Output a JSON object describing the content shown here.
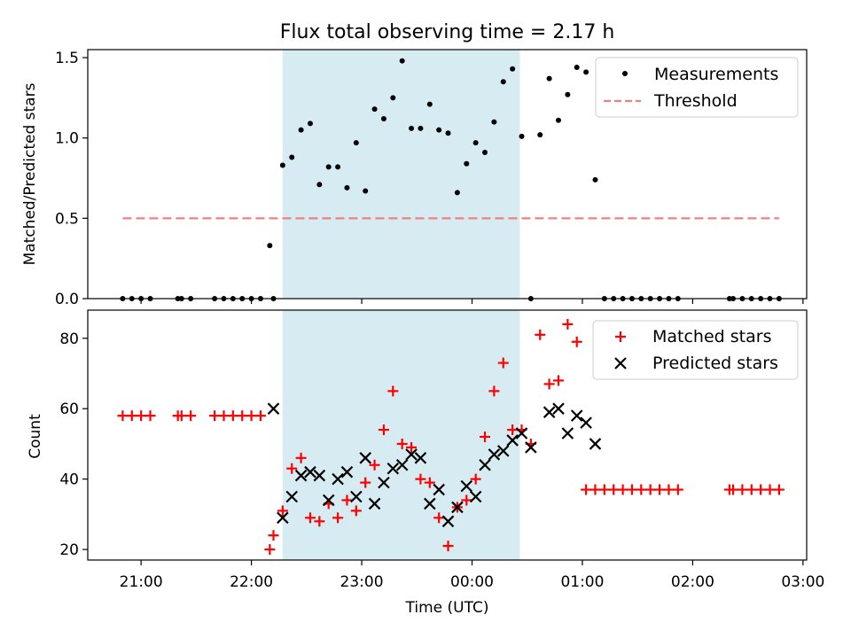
{
  "chart_data": [
    {
      "type": "scatter",
      "title": "Flux total observing time = 2.17 h",
      "ylabel": "Matched/Predicted stars",
      "xlabel": "",
      "ylim": [
        0,
        1.55
      ],
      "yticks": [
        "0.0",
        "0.5",
        "1.0",
        "1.5"
      ],
      "yticks_values": [
        0,
        0.5,
        1.0,
        1.5
      ],
      "legend": {
        "placement": "top-right",
        "entries": [
          "Measurements",
          "Threshold"
        ]
      },
      "shaded_interval": {
        "start": "22:17",
        "end": "00:26",
        "color": "#add8e6"
      },
      "threshold": {
        "name": "Threshold",
        "value": 0.5,
        "x_start": "20:50",
        "x_end": "02:47",
        "color": "#f08080",
        "style": "dashed"
      },
      "series": [
        {
          "name": "Measurements",
          "color": "#000000",
          "marker": "dot",
          "x": [
            "20:50",
            "20:55",
            "21:00",
            "21:05",
            "21:20",
            "21:22",
            "21:27",
            "21:40",
            "21:45",
            "21:50",
            "21:55",
            "22:00",
            "22:05",
            "22:10",
            "22:12",
            "22:17",
            "22:22",
            "22:27",
            "22:32",
            "22:37",
            "22:42",
            "22:47",
            "22:52",
            "22:57",
            "23:02",
            "23:07",
            "23:12",
            "23:17",
            "23:22",
            "23:27",
            "23:32",
            "23:37",
            "23:42",
            "23:47",
            "23:52",
            "23:57",
            "00:02",
            "00:07",
            "00:12",
            "00:17",
            "00:22",
            "00:27",
            "00:32",
            "00:37",
            "00:42",
            "00:47",
            "00:52",
            "00:57",
            "01:02",
            "01:07",
            "01:12",
            "01:17",
            "01:22",
            "01:27",
            "01:32",
            "01:37",
            "01:42",
            "01:47",
            "01:52",
            "02:20",
            "02:22",
            "02:27",
            "02:32",
            "02:37",
            "02:42",
            "02:47"
          ],
          "y": [
            0,
            0,
            0,
            0,
            0,
            0,
            0,
            0,
            0,
            0,
            0,
            0,
            0,
            0.33,
            0,
            0.83,
            0.88,
            1.05,
            1.09,
            0.71,
            0.82,
            0.82,
            0.69,
            0.97,
            0.67,
            1.18,
            1.12,
            1.25,
            1.48,
            1.06,
            1.06,
            1.21,
            1.05,
            1.03,
            0.66,
            0.84,
            0.97,
            0.91,
            1.1,
            1.35,
            1.43,
            1.01,
            0,
            1.02,
            1.37,
            1.11,
            1.27,
            1.44,
            1.41,
            0.74,
            0,
            0,
            0,
            0,
            0,
            0,
            0,
            0,
            0,
            0,
            0,
            0,
            0,
            0,
            0,
            0
          ]
        }
      ]
    },
    {
      "type": "scatter",
      "title": "",
      "ylabel": "Count",
      "xlabel": "Time (UTC)",
      "ylim": [
        17,
        88
      ],
      "yticks": [
        "20",
        "40",
        "60",
        "80"
      ],
      "yticks_values": [
        20,
        40,
        60,
        80
      ],
      "xticks": [
        "21:00",
        "22:00",
        "23:00",
        "00:00",
        "01:00",
        "02:00",
        "03:00"
      ],
      "legend": {
        "placement": "top-right",
        "entries": [
          "Matched stars",
          "Predicted stars"
        ]
      },
      "shaded_interval": {
        "start": "22:17",
        "end": "00:26",
        "color": "#add8e6"
      },
      "series": [
        {
          "name": "Matched stars",
          "color": "#ff0000",
          "marker": "plus",
          "x": [
            "20:50",
            "20:55",
            "21:00",
            "21:05",
            "21:20",
            "21:22",
            "21:27",
            "21:40",
            "21:45",
            "21:50",
            "21:55",
            "22:00",
            "22:05",
            "22:10",
            "22:12",
            "22:17",
            "22:22",
            "22:27",
            "22:32",
            "22:37",
            "22:42",
            "22:47",
            "22:52",
            "22:57",
            "23:02",
            "23:07",
            "23:12",
            "23:17",
            "23:22",
            "23:27",
            "23:32",
            "23:37",
            "23:42",
            "23:47",
            "23:52",
            "23:57",
            "00:02",
            "00:07",
            "00:12",
            "00:17",
            "00:22",
            "00:27",
            "00:32",
            "00:37",
            "00:42",
            "00:47",
            "00:52",
            "00:57",
            "01:02",
            "01:07",
            "01:12",
            "01:17",
            "01:22",
            "01:27",
            "01:32",
            "01:37",
            "01:42",
            "01:47",
            "01:52",
            "02:20",
            "02:22",
            "02:27",
            "02:32",
            "02:37",
            "02:42",
            "02:47"
          ],
          "y": [
            58,
            58,
            58,
            58,
            58,
            58,
            58,
            58,
            58,
            58,
            58,
            58,
            58,
            20,
            24,
            31,
            43,
            46,
            29,
            28,
            33,
            29,
            34,
            31,
            39,
            44,
            54,
            65,
            50,
            49,
            40,
            39,
            29,
            21,
            32,
            34,
            40,
            52,
            65,
            73,
            54,
            54,
            50,
            81,
            67,
            68,
            84,
            79,
            37,
            37,
            37,
            37,
            37,
            37,
            37,
            37,
            37,
            37,
            37,
            37,
            37,
            37,
            37,
            37,
            37,
            37
          ]
        },
        {
          "name": "Predicted stars",
          "color": "#000000",
          "marker": "x",
          "x": [
            "22:12",
            "22:17",
            "22:22",
            "22:27",
            "22:32",
            "22:37",
            "22:42",
            "22:47",
            "22:52",
            "22:57",
            "23:02",
            "23:07",
            "23:12",
            "23:17",
            "23:22",
            "23:27",
            "23:32",
            "23:37",
            "23:42",
            "23:47",
            "23:52",
            "23:57",
            "00:02",
            "00:07",
            "00:12",
            "00:17",
            "00:22",
            "00:27",
            "00:32",
            "00:42",
            "00:47",
            "00:52",
            "00:57",
            "01:02",
            "01:07"
          ],
          "y": [
            60,
            29,
            35,
            41,
            42,
            41,
            34,
            40,
            42,
            35,
            46,
            33,
            39,
            43,
            44,
            47,
            46,
            33,
            37,
            28,
            32,
            38,
            35,
            44,
            47,
            48,
            51,
            53,
            49,
            59,
            60,
            53,
            58,
            56,
            50
          ]
        }
      ]
    }
  ]
}
